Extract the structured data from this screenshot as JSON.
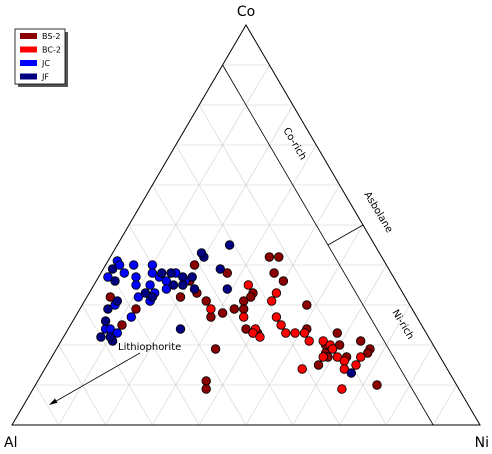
{
  "chart_data": {
    "type": "scatter",
    "subtype": "ternary",
    "vertices": {
      "top": "Co",
      "left": "Al",
      "right": "Ni"
    },
    "grid": true,
    "grid_step": 0.1,
    "legend_position": "top-left",
    "annotations": {
      "co_rich": "Co-rich",
      "asbolane": "Asbolane",
      "ni_rich": "Ni-rich",
      "lithiophorite": "Lithiophorite"
    },
    "series": [
      {
        "name": "BS-2",
        "color": "#8b0000",
        "points": [
          {
            "Co": 0.42,
            "Ni": 0.34,
            "Al": 0.24
          },
          {
            "Co": 0.42,
            "Ni": 0.36,
            "Al": 0.22
          },
          {
            "Co": 0.38,
            "Ni": 0.37,
            "Al": 0.25
          },
          {
            "Co": 0.4,
            "Ni": 0.19,
            "Al": 0.41
          },
          {
            "Co": 0.36,
            "Ni": 0.2,
            "Al": 0.44
          },
          {
            "Co": 0.36,
            "Ni": 0.4,
            "Al": 0.24
          },
          {
            "Co": 0.38,
            "Ni": 0.27,
            "Al": 0.35
          },
          {
            "Co": 0.33,
            "Ni": 0.35,
            "Al": 0.32
          },
          {
            "Co": 0.32,
            "Ni": 0.35,
            "Al": 0.33
          },
          {
            "Co": 0.33,
            "Ni": 0.23,
            "Al": 0.44
          },
          {
            "Co": 0.32,
            "Ni": 0.2,
            "Al": 0.48
          },
          {
            "Co": 0.31,
            "Ni": 0.26,
            "Al": 0.43
          },
          {
            "Co": 0.31,
            "Ni": 0.34,
            "Al": 0.35
          },
          {
            "Co": 0.29,
            "Ni": 0.33,
            "Al": 0.38
          },
          {
            "Co": 0.28,
            "Ni": 0.31,
            "Al": 0.41
          },
          {
            "Co": 0.29,
            "Ni": 0.35,
            "Al": 0.36
          },
          {
            "Co": 0.31,
            "Ni": 0.14,
            "Al": 0.55
          },
          {
            "Co": 0.29,
            "Ni": 0.12,
            "Al": 0.59
          },
          {
            "Co": 0.25,
            "Ni": 0.11,
            "Al": 0.64
          },
          {
            "Co": 0.27,
            "Ni": 0.29,
            "Al": 0.44
          },
          {
            "Co": 0.24,
            "Ni": 0.38,
            "Al": 0.38
          },
          {
            "Co": 0.32,
            "Ni": 0.05,
            "Al": 0.63
          },
          {
            "Co": 0.3,
            "Ni": 0.48,
            "Al": 0.22
          },
          {
            "Co": 0.23,
            "Ni": 0.58,
            "Al": 0.19
          },
          {
            "Co": 0.2,
            "Ni": 0.57,
            "Al": 0.23
          },
          {
            "Co": 0.2,
            "Ni": 0.6,
            "Al": 0.2
          },
          {
            "Co": 0.21,
            "Ni": 0.64,
            "Al": 0.15
          },
          {
            "Co": 0.19,
            "Ni": 0.67,
            "Al": 0.14
          },
          {
            "Co": 0.18,
            "Ni": 0.67,
            "Al": 0.15
          },
          {
            "Co": 0.17,
            "Ni": 0.63,
            "Al": 0.2
          },
          {
            "Co": 0.1,
            "Ni": 0.73,
            "Al": 0.17
          },
          {
            "Co": 0.11,
            "Ni": 0.36,
            "Al": 0.53
          },
          {
            "Co": 0.09,
            "Ni": 0.37,
            "Al": 0.54
          },
          {
            "Co": 0.24,
            "Ni": 0.51,
            "Al": 0.25
          },
          {
            "Co": 0.19,
            "Ni": 0.34,
            "Al": 0.47
          },
          {
            "Co": 0.18,
            "Ni": 0.58,
            "Al": 0.24
          },
          {
            "Co": 0.23,
            "Ni": 0.41,
            "Al": 0.36
          },
          {
            "Co": 0.23,
            "Ni": 0.4,
            "Al": 0.37
          },
          {
            "Co": 0.15,
            "Ni": 0.58,
            "Al": 0.27
          },
          {
            "Co": 0.17,
            "Ni": 0.59,
            "Al": 0.24
          }
        ]
      },
      {
        "name": "BC-2",
        "color": "#ff0000",
        "points": [
          {
            "Co": 0.33,
            "Ni": 0.4,
            "Al": 0.27
          },
          {
            "Co": 0.31,
            "Ni": 0.4,
            "Al": 0.29
          },
          {
            "Co": 0.29,
            "Ni": 0.28,
            "Al": 0.43
          },
          {
            "Co": 0.27,
            "Ni": 0.43,
            "Al": 0.3
          },
          {
            "Co": 0.25,
            "Ni": 0.45,
            "Al": 0.3
          },
          {
            "Co": 0.24,
            "Ni": 0.4,
            "Al": 0.36
          },
          {
            "Co": 0.23,
            "Ni": 0.4,
            "Al": 0.37
          },
          {
            "Co": 0.22,
            "Ni": 0.42,
            "Al": 0.36
          },
          {
            "Co": 0.23,
            "Ni": 0.47,
            "Al": 0.3
          },
          {
            "Co": 0.23,
            "Ni": 0.49,
            "Al": 0.28
          },
          {
            "Co": 0.23,
            "Ni": 0.51,
            "Al": 0.26
          },
          {
            "Co": 0.21,
            "Ni": 0.53,
            "Al": 0.26
          },
          {
            "Co": 0.21,
            "Ni": 0.56,
            "Al": 0.23
          },
          {
            "Co": 0.2,
            "Ni": 0.58,
            "Al": 0.22
          },
          {
            "Co": 0.19,
            "Ni": 0.59,
            "Al": 0.22
          },
          {
            "Co": 0.17,
            "Ni": 0.58,
            "Al": 0.25
          },
          {
            "Co": 0.17,
            "Ni": 0.61,
            "Al": 0.22
          },
          {
            "Co": 0.16,
            "Ni": 0.63,
            "Al": 0.21
          },
          {
            "Co": 0.14,
            "Ni": 0.64,
            "Al": 0.22
          },
          {
            "Co": 0.15,
            "Ni": 0.66,
            "Al": 0.19
          },
          {
            "Co": 0.17,
            "Ni": 0.66,
            "Al": 0.17
          },
          {
            "Co": 0.09,
            "Ni": 0.66,
            "Al": 0.25
          },
          {
            "Co": 0.14,
            "Ni": 0.55,
            "Al": 0.31
          },
          {
            "Co": 0.27,
            "Ni": 0.36,
            "Al": 0.37
          },
          {
            "Co": 0.35,
            "Ni": 0.33,
            "Al": 0.32
          }
        ]
      },
      {
        "name": "JC",
        "color": "#0000ff",
        "points": [
          {
            "Co": 0.41,
            "Ni": 0.02,
            "Al": 0.57
          },
          {
            "Co": 0.4,
            "Ni": 0.03,
            "Al": 0.57
          },
          {
            "Co": 0.4,
            "Ni": 0.06,
            "Al": 0.54
          },
          {
            "Co": 0.4,
            "Ni": 0.1,
            "Al": 0.5
          },
          {
            "Co": 0.38,
            "Ni": 0.11,
            "Al": 0.51
          },
          {
            "Co": 0.38,
            "Ni": 0.05,
            "Al": 0.57
          },
          {
            "Co": 0.37,
            "Ni": 0.02,
            "Al": 0.61
          },
          {
            "Co": 0.37,
            "Ni": 0.08,
            "Al": 0.55
          },
          {
            "Co": 0.37,
            "Ni": 0.13,
            "Al": 0.5
          },
          {
            "Co": 0.36,
            "Ni": 0.15,
            "Al": 0.49
          },
          {
            "Co": 0.36,
            "Ni": 0.19,
            "Al": 0.45
          },
          {
            "Co": 0.35,
            "Ni": 0.09,
            "Al": 0.56
          },
          {
            "Co": 0.35,
            "Ni": 0.12,
            "Al": 0.53
          },
          {
            "Co": 0.33,
            "Ni": 0.14,
            "Al": 0.53
          },
          {
            "Co": 0.32,
            "Ni": 0.11,
            "Al": 0.57
          },
          {
            "Co": 0.31,
            "Ni": 0.14,
            "Al": 0.55
          },
          {
            "Co": 0.3,
            "Ni": 0.07,
            "Al": 0.63
          },
          {
            "Co": 0.27,
            "Ni": 0.12,
            "Al": 0.61
          },
          {
            "Co": 0.24,
            "Ni": 0.08,
            "Al": 0.68
          },
          {
            "Co": 0.24,
            "Ni": 0.09,
            "Al": 0.67
          },
          {
            "Co": 0.23,
            "Ni": 0.11,
            "Al": 0.66
          },
          {
            "Co": 0.38,
            "Ni": 0.16,
            "Al": 0.46
          },
          {
            "Co": 0.34,
            "Ni": 0.16,
            "Al": 0.5
          }
        ]
      },
      {
        "name": "JF",
        "color": "#000080",
        "points": [
          {
            "Co": 0.45,
            "Ni": 0.24,
            "Al": 0.31
          },
          {
            "Co": 0.42,
            "Ni": 0.2,
            "Al": 0.38
          },
          {
            "Co": 0.43,
            "Ni": 0.19,
            "Al": 0.38
          },
          {
            "Co": 0.39,
            "Ni": 0.25,
            "Al": 0.36
          },
          {
            "Co": 0.38,
            "Ni": 0.13,
            "Al": 0.49
          },
          {
            "Co": 0.38,
            "Ni": 0.15,
            "Al": 0.47
          },
          {
            "Co": 0.37,
            "Ni": 0.18,
            "Al": 0.45
          },
          {
            "Co": 0.37,
            "Ni": 0.2,
            "Al": 0.43
          },
          {
            "Co": 0.35,
            "Ni": 0.17,
            "Al": 0.48
          },
          {
            "Co": 0.35,
            "Ni": 0.19,
            "Al": 0.46
          },
          {
            "Co": 0.34,
            "Ni": 0.22,
            "Al": 0.44
          },
          {
            "Co": 0.34,
            "Ni": 0.29,
            "Al": 0.37
          },
          {
            "Co": 0.33,
            "Ni": 0.12,
            "Al": 0.55
          },
          {
            "Co": 0.32,
            "Ni": 0.14,
            "Al": 0.54
          },
          {
            "Co": 0.31,
            "Ni": 0.07,
            "Al": 0.62
          },
          {
            "Co": 0.29,
            "Ni": 0.06,
            "Al": 0.65
          },
          {
            "Co": 0.26,
            "Ni": 0.07,
            "Al": 0.67
          },
          {
            "Co": 0.24,
            "Ni": 0.24,
            "Al": 0.52
          },
          {
            "Co": 0.21,
            "Ni": 0.11,
            "Al": 0.68
          },
          {
            "Co": 0.22,
            "Ni": 0.08,
            "Al": 0.7
          },
          {
            "Co": 0.22,
            "Ni": 0.1,
            "Al": 0.68
          },
          {
            "Co": 0.39,
            "Ni": 0.02,
            "Al": 0.59
          },
          {
            "Co": 0.36,
            "Ni": 0.04,
            "Al": 0.6
          },
          {
            "Co": 0.13,
            "Ni": 0.66,
            "Al": 0.21
          }
        ]
      }
    ]
  }
}
